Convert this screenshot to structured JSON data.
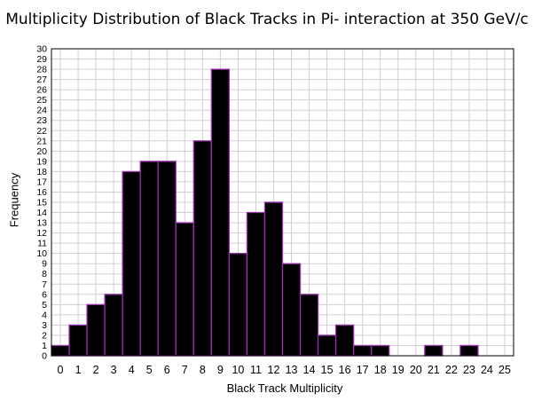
{
  "chart_data": {
    "type": "bar",
    "title": "Multiplicity Distribution of Black Tracks in Pi- interaction at 350 GeV/c",
    "xlabel": "Black Track Multiplicity",
    "ylabel": "Frequency",
    "categories": [
      "0",
      "1",
      "2",
      "3",
      "4",
      "5",
      "6",
      "7",
      "8",
      "9",
      "10",
      "11",
      "12",
      "13",
      "14",
      "15",
      "16",
      "17",
      "18",
      "19",
      "20",
      "21",
      "22",
      "23",
      "24",
      "25"
    ],
    "values": [
      1,
      3,
      5,
      6,
      18,
      19,
      19,
      13,
      21,
      28,
      10,
      14,
      15,
      9,
      6,
      2,
      3,
      1,
      1,
      0,
      0,
      1,
      0,
      1,
      0,
      0
    ],
    "xlim": [
      -0.5,
      25.5
    ],
    "ylim": [
      0,
      30
    ],
    "yticks_step": 1,
    "grid": true,
    "bar_fill_color": "#000000",
    "bar_edge_color": "#9b2fae",
    "grid_color": "#d0d0d0"
  }
}
